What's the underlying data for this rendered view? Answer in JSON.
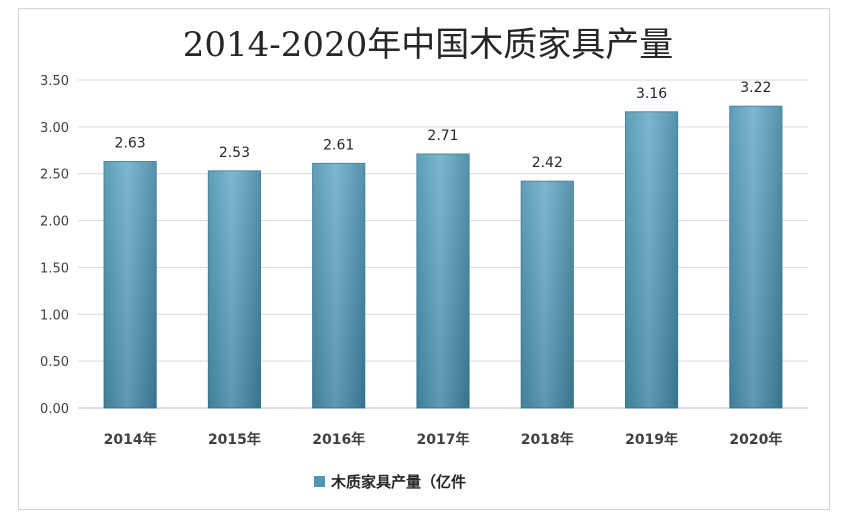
{
  "chart_data": {
    "type": "bar",
    "title": "2014-2020年中国木质家具产量",
    "categories": [
      "2014年",
      "2015年",
      "2016年",
      "2017年",
      "2018年",
      "2019年",
      "2020年"
    ],
    "series": [
      {
        "name": "木质家具产量（亿件",
        "values": [
          2.63,
          2.53,
          2.61,
          2.71,
          2.42,
          3.16,
          3.22
        ]
      }
    ],
    "data_labels": [
      "2.63",
      "2.53",
      "2.61",
      "2.71",
      "2.42",
      "3.16",
      "3.22"
    ],
    "yticks": [
      "0.00",
      "0.50",
      "1.00",
      "1.50",
      "2.00",
      "2.50",
      "3.00",
      "3.50"
    ],
    "ylim": [
      0,
      3.5
    ],
    "grid": true,
    "legend_position": "bottom",
    "colors": {
      "bar": "#4f97b4",
      "bar_edge": "#3b7c96",
      "grid": "#d9d9d9"
    }
  }
}
